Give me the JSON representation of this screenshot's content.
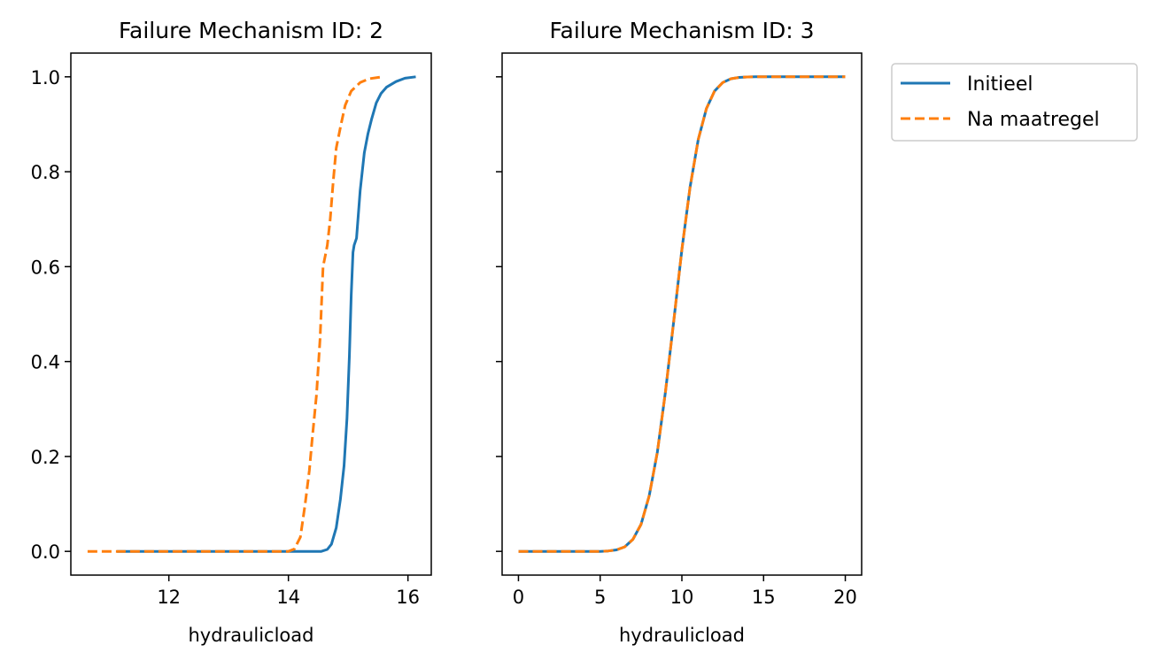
{
  "chart_data": [
    {
      "type": "line",
      "title": "Failure Mechanism ID: 2",
      "xlabel": "hydraulicload",
      "ylabel": "",
      "xlim": [
        10.36,
        16.39
      ],
      "ylim": [
        -0.05,
        1.05
      ],
      "xticks": [
        12,
        14,
        16
      ],
      "xtick_labels": [
        "12",
        "14",
        "16"
      ],
      "yticks": [
        0.0,
        0.2,
        0.4,
        0.6,
        0.8,
        1.0
      ],
      "ytick_labels": [
        "0.0",
        "0.2",
        "0.4",
        "0.6",
        "0.8",
        "1.0"
      ],
      "grid": false,
      "series": [
        {
          "name": "Initieel",
          "color": "#1f77b4",
          "style": "solid",
          "x": [
            11.13,
            14.0,
            14.55,
            14.65,
            14.72,
            14.8,
            14.87,
            14.93,
            14.98,
            15.02,
            15.05,
            15.08,
            15.1,
            15.14,
            15.2,
            15.27,
            15.33,
            15.39,
            15.47,
            15.55,
            15.64,
            15.8,
            15.95,
            16.13
          ],
          "y": [
            0.0,
            0.0,
            0.0,
            0.004,
            0.015,
            0.05,
            0.11,
            0.18,
            0.28,
            0.41,
            0.54,
            0.63,
            0.645,
            0.66,
            0.76,
            0.84,
            0.88,
            0.91,
            0.945,
            0.965,
            0.978,
            0.99,
            0.997,
            1.0
          ]
        },
        {
          "name": "Na maatregel",
          "color": "#ff7f0e",
          "style": "dashed",
          "x": [
            10.64,
            14.0,
            14.1,
            14.2,
            14.28,
            14.35,
            14.4,
            14.47,
            14.53,
            14.58,
            14.62,
            14.65,
            14.7,
            14.75,
            14.8,
            14.88,
            14.95,
            15.05,
            15.2,
            15.35,
            15.57
          ],
          "y": [
            0.0,
            0.0,
            0.005,
            0.03,
            0.1,
            0.17,
            0.24,
            0.33,
            0.45,
            0.6,
            0.625,
            0.645,
            0.7,
            0.78,
            0.85,
            0.9,
            0.94,
            0.97,
            0.988,
            0.996,
            1.0
          ]
        }
      ]
    },
    {
      "type": "line",
      "title": "Failure Mechanism ID: 3",
      "xlabel": "hydraulicload",
      "ylabel": "",
      "xlim": [
        -1.0,
        21.0
      ],
      "ylim": [
        -0.05,
        1.05
      ],
      "xticks": [
        0,
        5,
        10,
        15,
        20
      ],
      "xtick_labels": [
        "0",
        "5",
        "10",
        "15",
        "20"
      ],
      "yticks": [
        0.0,
        0.2,
        0.4,
        0.6,
        0.8,
        1.0
      ],
      "grid": false,
      "series": [
        {
          "name": "Initieel",
          "color": "#1f77b4",
          "style": "solid",
          "x": [
            0,
            5,
            5.5,
            6,
            6.5,
            7,
            7.5,
            8,
            8.5,
            9,
            9.5,
            10,
            10.5,
            11,
            11.5,
            12,
            12.5,
            13,
            13.5,
            14,
            14.5,
            20
          ],
          "y": [
            0,
            0,
            0.0009,
            0.0032,
            0.0094,
            0.025,
            0.057,
            0.117,
            0.209,
            0.337,
            0.485,
            0.636,
            0.767,
            0.868,
            0.933,
            0.97,
            0.988,
            0.996,
            0.9988,
            0.9997,
            1.0,
            1.0
          ]
        },
        {
          "name": "Na maatregel",
          "color": "#ff7f0e",
          "style": "dashed",
          "x": [
            0,
            5,
            5.5,
            6,
            6.5,
            7,
            7.5,
            8,
            8.5,
            9,
            9.5,
            10,
            10.5,
            11,
            11.5,
            12,
            12.5,
            13,
            13.5,
            14,
            14.5,
            20
          ],
          "y": [
            0,
            0,
            0.0009,
            0.0032,
            0.0094,
            0.025,
            0.057,
            0.117,
            0.209,
            0.337,
            0.485,
            0.636,
            0.767,
            0.868,
            0.933,
            0.97,
            0.988,
            0.996,
            0.9988,
            0.9997,
            1.0,
            1.0
          ]
        }
      ]
    }
  ],
  "legend": {
    "placement": "outside-top-right",
    "entries": [
      {
        "label": "Initieel",
        "color": "#1f77b4",
        "style": "solid"
      },
      {
        "label": "Na maatregel",
        "color": "#ff7f0e",
        "style": "dashed"
      }
    ]
  }
}
